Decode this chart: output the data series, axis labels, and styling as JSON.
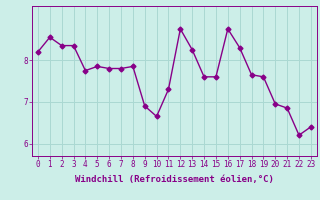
{
  "x": [
    0,
    1,
    2,
    3,
    4,
    5,
    6,
    7,
    8,
    9,
    10,
    11,
    12,
    13,
    14,
    15,
    16,
    17,
    18,
    19,
    20,
    21,
    22,
    23
  ],
  "y": [
    8.2,
    8.55,
    8.35,
    8.35,
    7.75,
    7.85,
    7.8,
    7.8,
    7.85,
    6.9,
    6.65,
    7.3,
    8.75,
    8.25,
    7.6,
    7.6,
    8.75,
    8.3,
    7.65,
    7.6,
    6.95,
    6.85,
    6.2,
    6.4
  ],
  "line_color": "#880088",
  "marker": "D",
  "markersize": 2.5,
  "linewidth": 1.0,
  "bg_color": "#cceee8",
  "grid_color": "#aad8d2",
  "xlabel": "Windchill (Refroidissement éolien,°C)",
  "xlabel_fontsize": 6.5,
  "tick_fontsize": 5.5,
  "yticks": [
    6,
    7,
    8
  ],
  "ylim": [
    5.7,
    9.3
  ],
  "xlim": [
    -0.5,
    23.5
  ],
  "xticks": [
    0,
    1,
    2,
    3,
    4,
    5,
    6,
    7,
    8,
    9,
    10,
    11,
    12,
    13,
    14,
    15,
    16,
    17,
    18,
    19,
    20,
    21,
    22,
    23
  ]
}
